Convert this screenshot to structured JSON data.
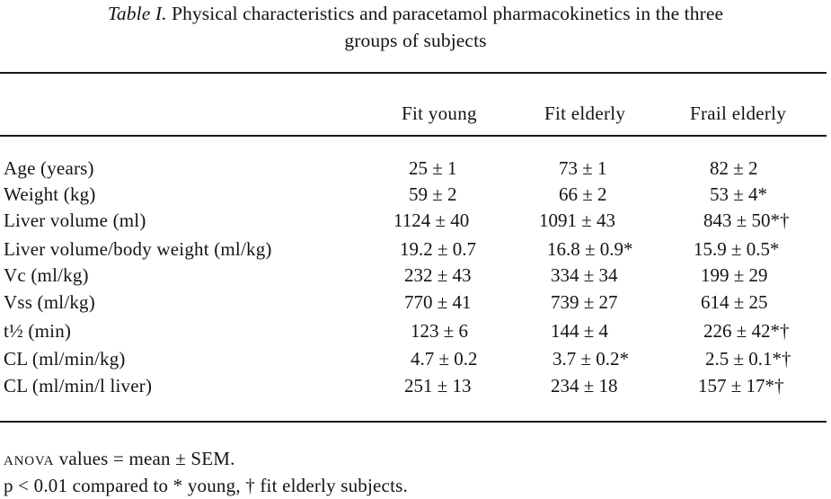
{
  "caption": {
    "label": "Table I.",
    "line1": " Physical characteristics and paracetamol pharmacokinetics in the three",
    "line2": "groups of subjects"
  },
  "columns": [
    "Fit young",
    "Fit elderly",
    "Frail elderly"
  ],
  "rows": [
    {
      "label": "Age (years)",
      "values": [
        "25 ± 1",
        "73 ± 1",
        "82 ± 2"
      ]
    },
    {
      "label": "Weight (kg)",
      "values": [
        "59 ± 2",
        "66 ± 2",
        "53 ± 4*"
      ]
    },
    {
      "label": "Liver volume (ml)",
      "values": [
        "1124 ± 40",
        "1091 ± 43",
        "843 ± 50*†"
      ]
    },
    {
      "label": "Liver volume/body weight (ml/kg)",
      "values": [
        "19.2 ± 0.7",
        "16.8 ± 0.9*",
        "15.9 ± 0.5*"
      ]
    },
    {
      "label": "Vc (ml/kg)",
      "values": [
        "232 ± 43",
        "334 ± 34",
        "199 ± 29"
      ]
    },
    {
      "label": "Vss (ml/kg)",
      "values": [
        "770 ± 41",
        "739 ± 27",
        "614 ± 25"
      ]
    },
    {
      "label": "t½ (min)",
      "values": [
        "123 ± 6",
        "144 ± 4",
        "226 ± 42*†"
      ]
    },
    {
      "label": "CL (ml/min/kg)",
      "values": [
        "4.7 ± 0.2",
        "3.7 ± 0.2*",
        "2.5 ± 0.1*†"
      ]
    },
    {
      "label": "CL (ml/min/l liver)",
      "values": [
        "251 ± 13",
        "234 ± 18",
        "157 ± 17*†"
      ]
    }
  ],
  "footnotes": {
    "anova": "ANOVA",
    "values_note": " values = mean ± SEM.",
    "significance": "p < 0.01 compared to * young, † fit elderly subjects."
  }
}
